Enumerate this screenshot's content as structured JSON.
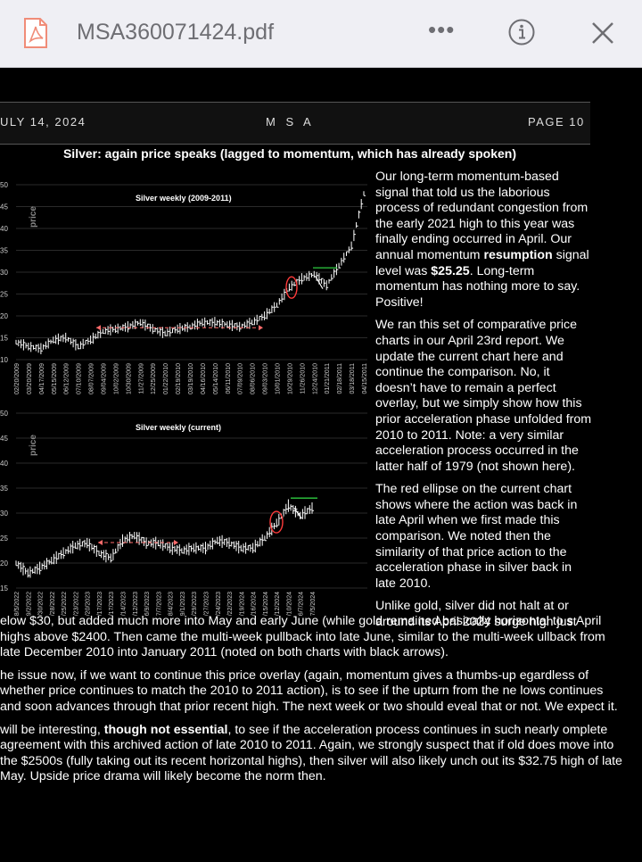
{
  "toolbar": {
    "filename": "MSA360071424.pdf",
    "pdf_icon_label": "PDF",
    "more_label": "•••"
  },
  "report_header": {
    "date": "ULY 14, 2024",
    "masthead": "M S A",
    "page": "PAGE  10"
  },
  "figure": {
    "title": "Silver: again price speaks (lagged to momentum, which has already spoken)",
    "chart1_label": "Silver weekly (2009-2011)",
    "chart2_label": "Silver weekly (current)",
    "ylabel": "price",
    "chart1_yticks": [
      "50",
      "45",
      "40",
      "35",
      "30",
      "25",
      "20",
      "15",
      "10"
    ],
    "chart2_yticks": [
      "50",
      "45",
      "40",
      "35",
      "30",
      "25",
      "20",
      "15"
    ],
    "chart1_xticks": [
      "02/20/2009",
      "03/20/2009",
      "04/17/2009",
      "05/15/2009",
      "06/12/2009",
      "07/10/2009",
      "08/07/2009",
      "09/04/2009",
      "10/02/2009",
      "10/30/2009",
      "11/27/2009",
      "12/25/2009",
      "01/22/2010",
      "02/19/2010",
      "03/19/2010",
      "04/16/2010",
      "05/14/2010",
      "06/11/2010",
      "07/09/2010",
      "08/06/2010",
      "09/03/2010",
      "10/01/2010",
      "10/29/2010",
      "11/26/2010",
      "12/24/2010",
      "01/21/2011",
      "02/18/2011",
      "03/18/2011",
      "04/15/2011"
    ],
    "chart2_xticks": [
      "8/5/2022",
      "9/2/2022",
      "9/30/2022",
      "10/28/2022",
      "11/25/2022",
      "12/23/2022",
      "1/20/2023",
      "2/17/2023",
      "3/17/2023",
      "4/14/2023",
      "5/12/2023",
      "6/9/2023",
      "7/7/2023",
      "8/4/2023",
      "9/1/2023",
      "9/29/2023",
      "10/27/2023",
      "11/24/2023",
      "12/22/2023",
      "1/19/2024",
      "2/16/2024",
      "3/15/2024",
      "4/12/2024",
      "5/10/2024",
      "6/7/2024",
      "7/5/2024"
    ]
  },
  "chart_data": [
    {
      "type": "line",
      "label": "Silver weekly (2009-2011)",
      "ylabel": "price",
      "ylim": [
        10,
        50
      ],
      "x": [
        "02/20/2009",
        "03/20/2009",
        "04/17/2009",
        "05/15/2009",
        "06/12/2009",
        "07/10/2009",
        "08/07/2009",
        "09/04/2009",
        "10/02/2009",
        "10/30/2009",
        "11/27/2009",
        "12/25/2009",
        "01/22/2010",
        "02/19/2010",
        "03/19/2010",
        "04/16/2010",
        "05/14/2010",
        "06/11/2010",
        "07/09/2010",
        "08/06/2010",
        "09/03/2010",
        "10/01/2010",
        "10/29/2010",
        "11/26/2010",
        "12/24/2010",
        "01/21/2011",
        "02/18/2011",
        "03/18/2011",
        "04/15/2011"
      ],
      "values": [
        14,
        13,
        12.5,
        14.5,
        15,
        13,
        14.5,
        16.5,
        17,
        17.5,
        18.5,
        17,
        16,
        17,
        17.5,
        18.5,
        18.5,
        18,
        17.5,
        18.5,
        20,
        22.5,
        26.5,
        28.5,
        29.5,
        27,
        31.5,
        36,
        48
      ]
    },
    {
      "type": "line",
      "label": "Silver weekly (current)",
      "ylabel": "price",
      "ylim": [
        15,
        50
      ],
      "x": [
        "8/5/2022",
        "9/2/2022",
        "9/30/2022",
        "10/28/2022",
        "11/25/2022",
        "12/23/2022",
        "1/20/2023",
        "2/17/2023",
        "3/17/2023",
        "4/14/2023",
        "5/12/2023",
        "6/9/2023",
        "7/7/2023",
        "8/4/2023",
        "9/1/2023",
        "9/29/2023",
        "10/27/2023",
        "11/24/2023",
        "12/22/2023",
        "1/19/2024",
        "2/16/2024",
        "3/15/2024",
        "4/12/2024",
        "5/10/2024",
        "6/7/2024",
        "7/5/2024"
      ],
      "values": [
        20,
        18,
        19,
        20.5,
        22,
        23.5,
        24,
        22,
        21,
        24.5,
        25.5,
        24,
        24,
        23,
        22.5,
        23,
        23,
        24.5,
        24,
        23,
        23,
        25,
        28,
        31.5,
        29.5,
        31
      ]
    }
  ],
  "column_paragraphs": [
    [
      {
        "t": "Our long-term momentum-based signal that told us the laborious process of redundant congestion from the early 2021 high to this year was finally ending occurred in April.  Our annual momentum "
      },
      {
        "t": "resumption",
        "b": true
      },
      {
        "t": " signal level was "
      },
      {
        "t": "$25.25",
        "b": true
      },
      {
        "t": ".  Long-term momentum has nothing more to say.  Positive!"
      }
    ],
    [
      {
        "t": "We ran this set of comparative price charts in our April 23rd report.  We update the current chart here and continue the comparison.  No, it doesn’t have to remain a perfect overlay, but we simply show how this prior acceleration phase unfolded from 2010 to 2011.  Note: a very similar acceleration process occurred in the latter half of 1979 (not shown here)."
      }
    ],
    [
      {
        "t": "The red ellipse on the current chart shows where the action was back in late April when we first made this comparison.  We noted then the similarity of that price action to the acceleration phase in silver back in late 2010."
      }
    ]
  ],
  "full_paragraphs": [
    [
      {
        "t": "elow $30, but added much more into May and early June (while gold remained basically horizontal to s April highs above $2400.  Then came the multi-week pullback into late June, similar to the multi-week ullback from late December 2010 into January 2011 (noted on both charts with black arrows)."
      }
    ],
    [
      {
        "t": "he issue now, if we want to continue this price overlay (again, momentum gives a thumbs-up egardless of whether price continues to match the 2010 to 2011 action), is to see if the upturn from the ne lows continues and soon advances through that prior recent high.  The next week or two should eveal that or not.  We expect it."
      }
    ],
    [
      {
        "t": " will be interesting, "
      },
      {
        "t": "though not essential",
        "b": true
      },
      {
        "t": ", to see if the acceleration process continues in such nearly omplete agreement with this archived action of late 2010 to 2011.  Again, we strongly suspect that if old does move into the $2500s (fully taking out its recent horizontal highs), then silver will also likely unch out its $32.75 high of late May.  Upside price drama will likely become the norm then."
      }
    ]
  ],
  "transition_para_head": "Unlike gold, silver did not halt at or around its April 2024 surge high just",
  "colors": {
    "background": "#000000",
    "toolbar": "#efeff4",
    "ellipse": "#ff3b3b",
    "resistance": "#2ecc40",
    "dash": "#ff6b6b"
  }
}
